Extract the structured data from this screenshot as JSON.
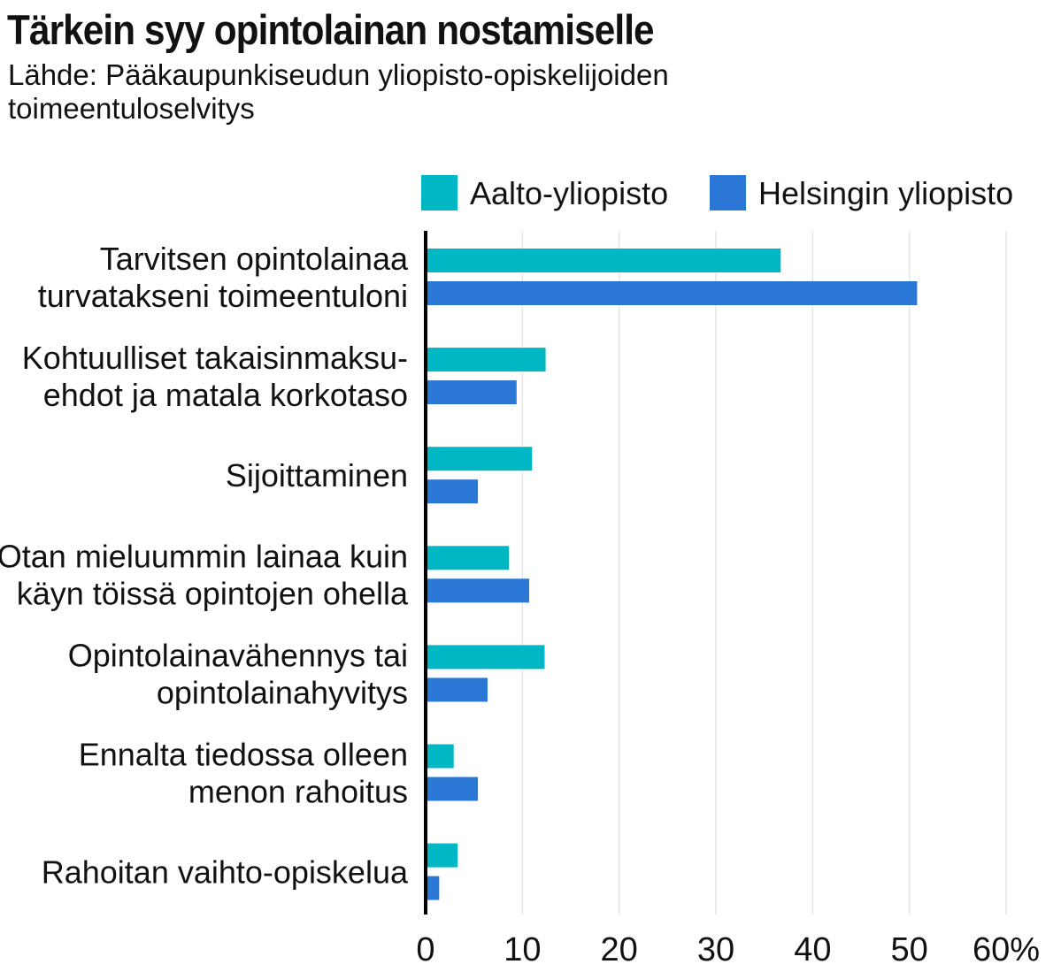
{
  "header": {
    "title": "Tärkein syy opintolainan nostamiselle",
    "subtitle": "Lähde: Pääkaupunkiseudun yliopisto-opiskelijoiden toimeentuloselvitys"
  },
  "colors": {
    "aalto": "#00b7c3",
    "helsinki": "#2b77d6",
    "grid": "#e6e6e6",
    "axis": "#000000"
  },
  "chart_data": {
    "type": "bar",
    "orientation": "horizontal",
    "title": "Tärkein syy opintolainan nostamiselle",
    "subtitle": "Lähde: Pääkaupunkiseudun yliopisto-opiskelijoiden toimeentuloselvitys",
    "categories": [
      [
        "Tarvitsen opintolainaa",
        "turvatakseni toimeentuloni"
      ],
      [
        "Kohtuulliset takaisinmaksu-",
        "ehdot ja matala korkotaso"
      ],
      [
        "Sijoittaminen"
      ],
      [
        "Otan mieluummin lainaa kuin",
        "käyn töissä opintojen ohella"
      ],
      [
        "Opintolainavähennys tai",
        "opintolainahyvitys"
      ],
      [
        "Ennalta tiedossa olleen",
        "menon rahoitus"
      ],
      [
        "Rahoitan vaihto-opiskelua"
      ]
    ],
    "series": [
      {
        "name": "Aalto-yliopisto",
        "color": "#00b7c3",
        "values": [
          36.7,
          12.4,
          11.0,
          8.6,
          12.3,
          2.9,
          3.3
        ]
      },
      {
        "name": "Helsingin yliopisto",
        "color": "#2b77d6",
        "values": [
          50.8,
          9.4,
          5.4,
          10.7,
          6.4,
          5.4,
          1.4
        ]
      }
    ],
    "xlim": [
      0,
      60
    ],
    "ticks": [
      "0",
      "10",
      "20",
      "30",
      "40",
      "50",
      "60%"
    ],
    "tick_values": [
      0,
      10,
      20,
      30,
      40,
      50,
      60
    ],
    "grid": true,
    "legend_position": "top-right"
  }
}
